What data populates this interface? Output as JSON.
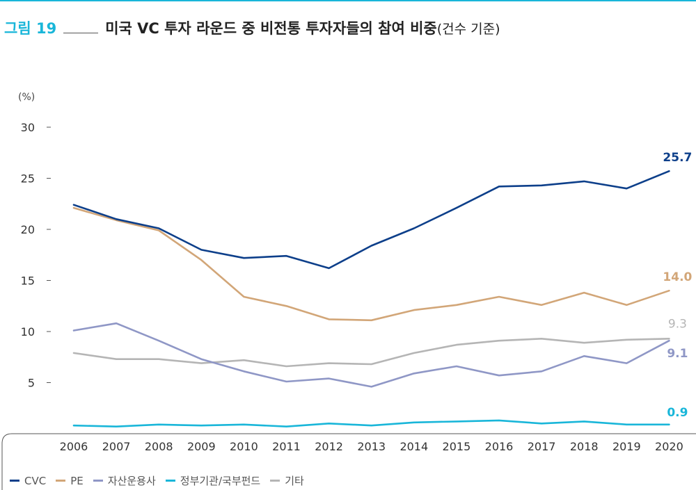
{
  "header": {
    "figure_number": "그림 19",
    "title": "미국 VC 투자 라운드 중 비전통 투자자들의 참여 비중",
    "subtitle": "(건수 기준)"
  },
  "chart_data": {
    "type": "line",
    "ylabel": "(%)",
    "ylim": [
      0,
      30
    ],
    "yticks": [
      5,
      10,
      15,
      20,
      25,
      30
    ],
    "x": [
      "2006",
      "2007",
      "2008",
      "2009",
      "2010",
      "2011",
      "2012",
      "2013",
      "2014",
      "2015",
      "2016",
      "2017",
      "2018",
      "2019",
      "2020"
    ],
    "grid": false,
    "legend_position": "bottom-left",
    "series": [
      {
        "name": "CVC",
        "color": "#0d3f8a",
        "values": [
          22.4,
          21.0,
          20.1,
          18.0,
          17.2,
          17.4,
          16.2,
          18.4,
          20.1,
          22.1,
          24.2,
          24.3,
          24.7,
          24.0,
          25.7
        ],
        "end_label": "25.7"
      },
      {
        "name": "PE",
        "color": "#d2a678",
        "values": [
          22.1,
          20.9,
          19.9,
          17.0,
          13.4,
          12.5,
          11.2,
          11.1,
          12.1,
          12.6,
          13.4,
          12.6,
          13.8,
          12.6,
          14.0
        ],
        "end_label": "14.0"
      },
      {
        "name": "자산운용사",
        "color": "#8f97c6",
        "values": [
          10.1,
          10.8,
          9.1,
          7.3,
          6.1,
          5.1,
          5.4,
          4.6,
          5.9,
          6.6,
          5.7,
          6.1,
          7.6,
          6.9,
          9.1
        ],
        "end_label": "9.1"
      },
      {
        "name": "정부기관/국부펀드",
        "color": "#19b6d9",
        "values": [
          0.8,
          0.7,
          0.9,
          0.8,
          0.9,
          0.7,
          1.0,
          0.8,
          1.1,
          1.2,
          1.3,
          1.0,
          1.2,
          0.9,
          0.9
        ],
        "end_label": "0.9"
      },
      {
        "name": "기타",
        "color": "#b5b5b5",
        "values": [
          7.9,
          7.3,
          7.3,
          6.9,
          7.2,
          6.6,
          6.9,
          6.8,
          7.9,
          8.7,
          9.1,
          9.3,
          8.9,
          9.2,
          9.3
        ],
        "end_label": "9.3"
      }
    ]
  }
}
